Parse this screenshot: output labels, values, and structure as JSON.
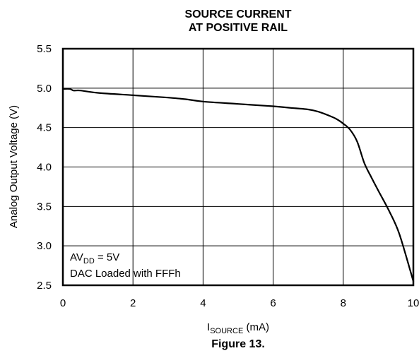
{
  "chart_data": {
    "type": "line",
    "title_lines": [
      "SOURCE CURRENT",
      "AT POSITIVE RAIL"
    ],
    "xlabel_main": "I",
    "xlabel_sub": "SOURCE",
    "xlabel_unit": " (mA)",
    "ylabel": "Analog Output Voltage (V)",
    "xlim": [
      0,
      10
    ],
    "ylim": [
      2.5,
      5.5
    ],
    "x_ticks": [
      0,
      2,
      4,
      6,
      8,
      10
    ],
    "x_tick_labels": [
      "0",
      "2",
      "4",
      "6",
      "8",
      "10"
    ],
    "y_ticks": [
      2.5,
      3.0,
      3.5,
      4.0,
      4.5,
      5.0,
      5.5
    ],
    "y_tick_labels": [
      "2.5",
      "3.0",
      "3.5",
      "4.0",
      "4.5",
      "5.0",
      "5.5"
    ],
    "grid": true,
    "series": [
      {
        "x": [
          0,
          0.2,
          0.3,
          0.5,
          1.0,
          2.0,
          3.0,
          3.5,
          4.0,
          5.0,
          6.0,
          6.5,
          7.0,
          7.3,
          7.6,
          7.8,
          8.0,
          8.2,
          8.4,
          8.6,
          8.8,
          9.0,
          9.3,
          9.6,
          10.0
        ],
        "y": [
          4.99,
          4.99,
          4.97,
          4.97,
          4.94,
          4.91,
          4.88,
          4.86,
          4.83,
          4.8,
          4.77,
          4.75,
          4.73,
          4.7,
          4.65,
          4.61,
          4.55,
          4.47,
          4.32,
          4.05,
          3.87,
          3.7,
          3.45,
          3.15,
          2.55
        ]
      }
    ],
    "annotations": {
      "line1_main": "AV",
      "line1_sub": "DD",
      "line1_rest": " = 5V",
      "line2": "DAC Loaded with FFFh"
    }
  },
  "caption": "Figure 13."
}
